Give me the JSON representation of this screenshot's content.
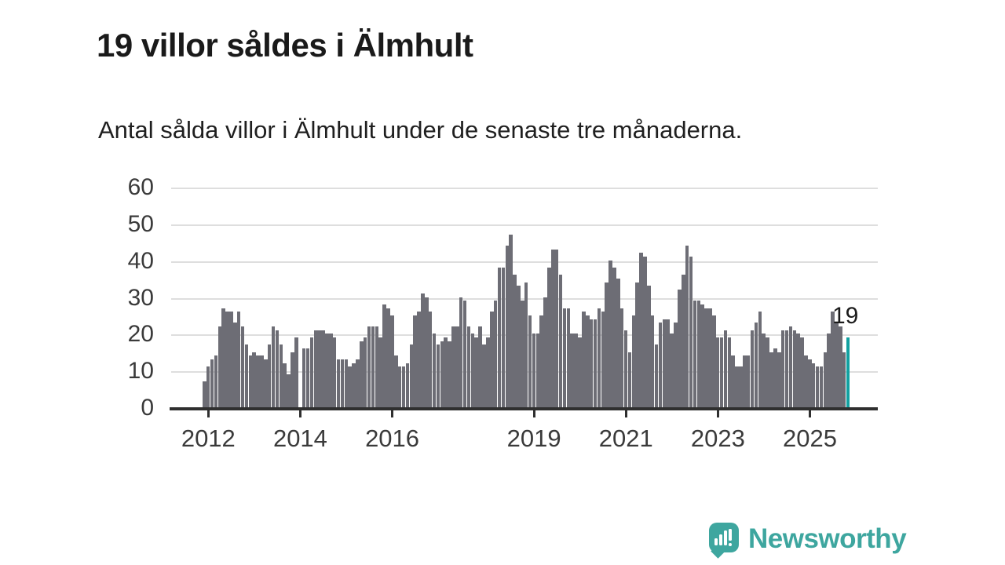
{
  "header": {
    "title": "19 villor såldes i Älmhult",
    "subtitle": "Antal sålda villor i Älmhult under de senaste tre månaderna."
  },
  "chart_data": {
    "type": "bar",
    "title": "19 villor såldes i Älmhult",
    "subtitle": "Antal sålda villor i Älmhult under de senaste tre månaderna.",
    "frequency": "monthly (rolling 3-month count), 2012 through late 2025",
    "ylim": [
      0,
      60
    ],
    "y_ticks": [
      0,
      10,
      20,
      30,
      40,
      50,
      60
    ],
    "x_tick_labels": [
      "2012",
      "2014",
      "2016",
      "2019",
      "2021",
      "2023",
      "2025"
    ],
    "x_tick_bar_indices": [
      1,
      25,
      49,
      86,
      110,
      134,
      158
    ],
    "grid": true,
    "legend": null,
    "values": [
      7,
      11,
      13,
      14,
      22,
      27,
      26,
      26,
      23,
      26,
      22,
      17,
      14,
      15,
      14,
      14,
      13,
      17,
      22,
      21,
      17,
      12,
      9,
      15,
      19,
      0,
      16,
      16,
      19,
      21,
      21,
      21,
      20,
      20,
      19,
      13,
      13,
      13,
      11,
      12,
      13,
      18,
      19,
      22,
      22,
      22,
      19,
      28,
      27,
      25,
      14,
      11,
      11,
      12,
      17,
      25,
      26,
      31,
      30,
      26,
      20,
      17,
      18,
      19,
      18,
      22,
      22,
      30,
      29,
      22,
      20,
      19,
      22,
      17,
      19,
      26,
      29,
      38,
      38,
      44,
      47,
      36,
      33,
      29,
      34,
      25,
      20,
      20,
      25,
      30,
      38,
      43,
      43,
      36,
      27,
      27,
      20,
      20,
      19,
      26,
      25,
      24,
      24,
      27,
      26,
      34,
      40,
      38,
      35,
      27,
      21,
      15,
      25,
      34,
      42,
      41,
      33,
      25,
      17,
      23,
      24,
      24,
      20,
      23,
      32,
      36,
      44,
      41,
      29,
      29,
      28,
      27,
      27,
      25,
      19,
      19,
      21,
      19,
      14,
      11,
      11,
      14,
      14,
      21,
      23,
      26,
      20,
      19,
      15,
      16,
      15,
      21,
      21,
      22,
      21,
      20,
      19,
      14,
      13,
      12,
      11,
      11,
      15,
      20,
      26,
      23,
      22,
      15,
      19
    ],
    "highlight_last": {
      "value": 19,
      "label": "19"
    },
    "colors": {
      "bar": "#6d6d75",
      "highlight": "#12a1a1",
      "grid": "#dedede",
      "axis": "#2f2f2f",
      "text": "#1a1a1a"
    }
  },
  "annotation": {
    "last_value_label": "19"
  },
  "logo": {
    "text": "Newsworthy",
    "color": "#3ea69f",
    "icon": "newsworthy-speech-bubble-chart-icon"
  }
}
